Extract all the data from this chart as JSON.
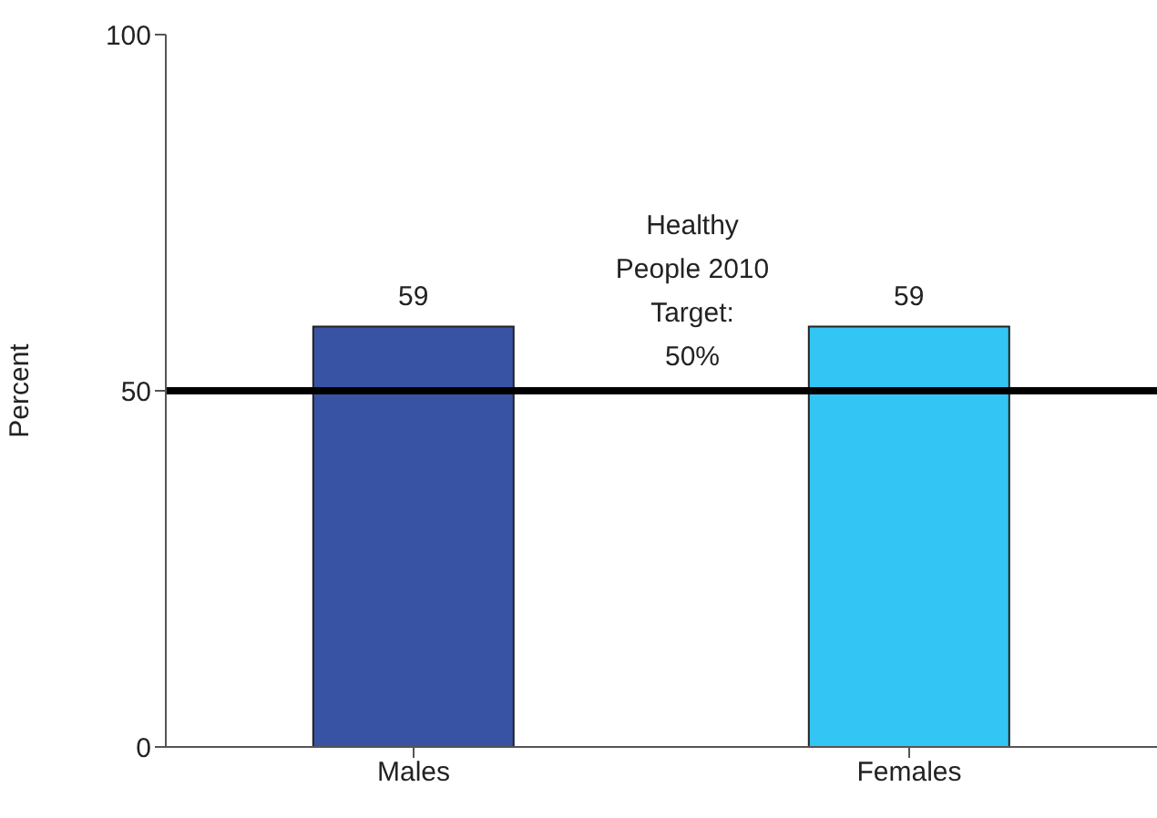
{
  "chart_data": {
    "type": "bar",
    "ylabel": "Percent",
    "categories": [
      "Males",
      "Females"
    ],
    "values": [
      59,
      59
    ],
    "colors": [
      "#3953a4",
      "#33c5f3"
    ],
    "ylim": [
      0,
      100
    ],
    "yticks": [
      0,
      50,
      100
    ],
    "data_labels": true,
    "grid": false,
    "legend": false,
    "ref_lines": [
      {
        "axis": "y",
        "value": 50,
        "label": "Healthy\nPeople 2010\nTarget:\n50%",
        "color": "#000000"
      }
    ]
  }
}
